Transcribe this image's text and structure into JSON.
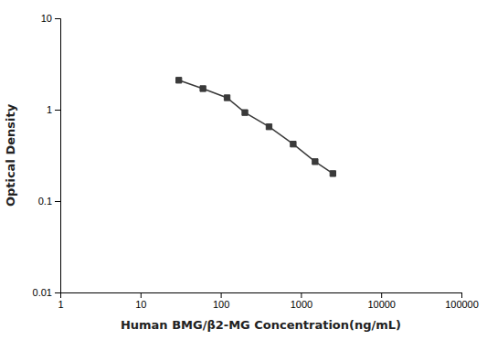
{
  "chart_data": {
    "type": "line",
    "xlabel": "Human BMG/β2-MG Concentration(ng/mL)",
    "ylabel": "Optical Density",
    "x": [
      30,
      60,
      120,
      200,
      400,
      800,
      1500,
      2500
    ],
    "values": [
      2.1,
      1.7,
      1.35,
      0.93,
      0.65,
      0.42,
      0.27,
      0.2
    ],
    "color": "#3a3a3a",
    "marker": "square",
    "log": true,
    "grid": false,
    "xlim": [
      1,
      100000
    ],
    "ylim": [
      0.01,
      10
    ],
    "xticks": [
      1,
      10,
      100,
      1000,
      10000,
      100000
    ],
    "yticks": [
      0.01,
      0.1,
      1,
      10
    ]
  }
}
